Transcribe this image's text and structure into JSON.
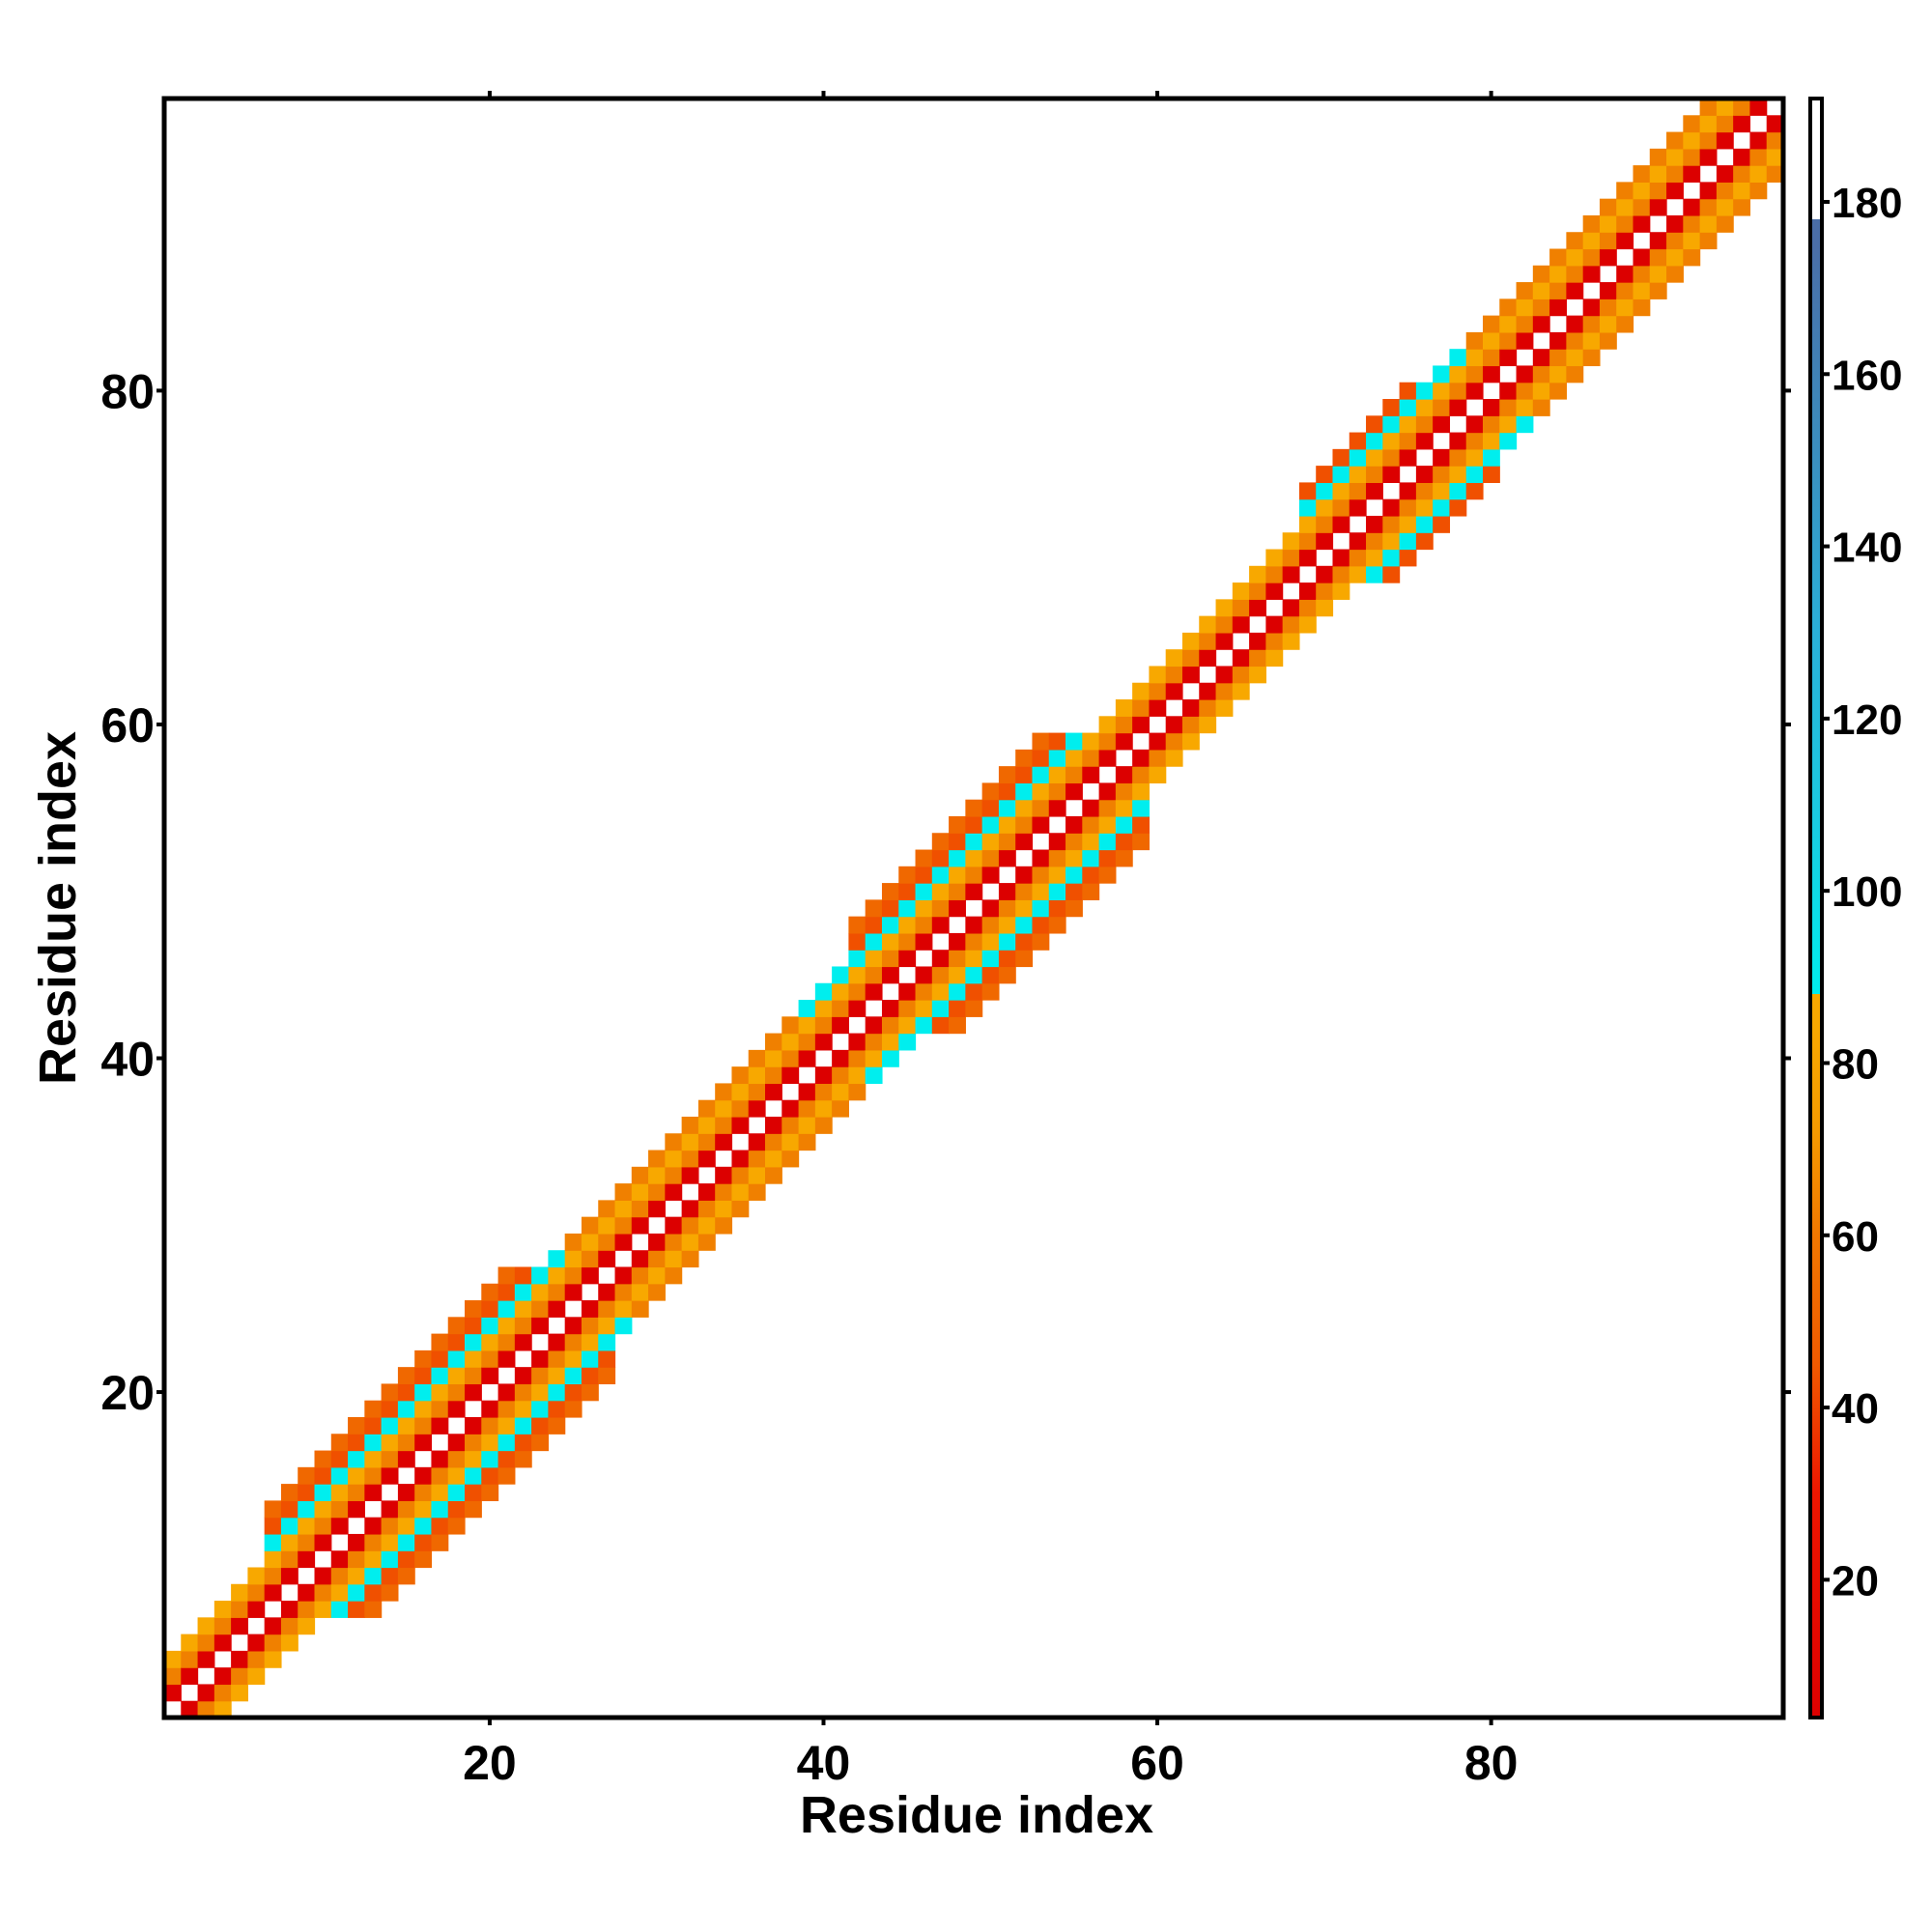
{
  "chart_data": {
    "type": "heatmap",
    "xlabel": "Residue index",
    "ylabel": "Residue index",
    "xlim": [
      0.5,
      97.5
    ],
    "ylim": [
      0.5,
      97.5
    ],
    "x_ticks": [
      "20",
      "40",
      "60",
      "80"
    ],
    "y_ticks": [
      "20",
      "40",
      "60",
      "80"
    ],
    "colorbar": {
      "range": [
        4,
        192
      ],
      "ticks": [
        "20",
        "40",
        "60",
        "80",
        "100",
        "120",
        "140",
        "160",
        "180"
      ],
      "stops": [
        {
          "value": 4,
          "color": "#dc0000"
        },
        {
          "value": 30,
          "color": "#ee1600"
        },
        {
          "value": 45,
          "color": "#f05a00"
        },
        {
          "value": 60,
          "color": "#f27800"
        },
        {
          "value": 72,
          "color": "#f59a00"
        },
        {
          "value": 84,
          "color": "#f8a800"
        },
        {
          "value": 88,
          "color": "#00eeee"
        },
        {
          "value": 110,
          "color": "#1cc8e0"
        },
        {
          "value": 130,
          "color": "#2ab0d8"
        },
        {
          "value": 150,
          "color": "#3a90c0"
        },
        {
          "value": 175,
          "color": "#4a6ea8"
        },
        {
          "value": 178,
          "color": "#ffffff"
        },
        {
          "value": 192,
          "color": "#ffffff"
        }
      ]
    },
    "band": {
      "description": "Symmetric contact-distance matrix; only near-diagonal cells are colored",
      "half_width_by_segment": [
        {
          "from": 1,
          "to": 6,
          "half_width": 3
        },
        {
          "from": 6,
          "to": 27,
          "half_width": 6
        },
        {
          "from": 27,
          "to": 41,
          "half_width": 4
        },
        {
          "from": 41,
          "to": 59,
          "half_width": 6
        },
        {
          "from": 59,
          "to": 68,
          "half_width": 3
        },
        {
          "from": 68,
          "to": 80,
          "half_width": 5
        },
        {
          "from": 80,
          "to": 97,
          "half_width": 4
        }
      ],
      "near_distance_colors": {
        "d1": "#dc0000",
        "d2": "#f08000",
        "d3": "#f8a800",
        "d4_helix": "#00eeee",
        "d4_other": "#f08000",
        "d5_helix": "#f05000",
        "d5_other": "#ee1600",
        "d6": "#f06800"
      },
      "helical_ranges": [
        [
          9,
          26
        ],
        [
          41,
          59
        ],
        [
          70,
          80
        ]
      ]
    }
  }
}
